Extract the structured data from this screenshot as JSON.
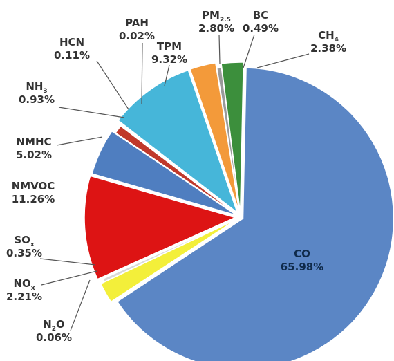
{
  "chart_data": {
    "type": "pie",
    "title": "",
    "legend": "none",
    "slices": [
      {
        "label": "CO",
        "sub": "",
        "value_text": "65.98%",
        "value": 65.98,
        "color": "#5b86c5"
      },
      {
        "label": "N",
        "sub": "2",
        "suffix": "O",
        "value_text": "0.06%",
        "value": 0.06,
        "color": "#e7e7e7"
      },
      {
        "label": "NO",
        "sub": "x",
        "suffix": "",
        "value_text": "2.21%",
        "value": 2.21,
        "color": "#f3ef3a"
      },
      {
        "label": "SO",
        "sub": "x",
        "suffix": "",
        "value_text": "0.35%",
        "value": 0.35,
        "color": "#d8d8d8"
      },
      {
        "label": "NMVOC",
        "sub": "",
        "value_text": "11.26%",
        "value": 11.26,
        "color": "#dd1414"
      },
      {
        "label": "NMHC",
        "sub": "",
        "value_text": "5.02%",
        "value": 5.02,
        "color": "#4f7ec0"
      },
      {
        "label": "NH",
        "sub": "3",
        "suffix": "",
        "value_text": "0.93%",
        "value": 0.93,
        "color": "#c0392b"
      },
      {
        "label": "HCN",
        "sub": "",
        "value_text": "0.11%",
        "value": 0.11,
        "color": "#8e8e8e"
      },
      {
        "label": "PAH",
        "sub": "",
        "value_text": "0.02%",
        "value": 0.02,
        "color": "#6a6a6a"
      },
      {
        "label": "TPM",
        "sub": "",
        "value_text": "9.32%",
        "value": 9.32,
        "color": "#46b6d9"
      },
      {
        "label": "PM",
        "sub": "2.5",
        "suffix": "",
        "value_text": "2.80%",
        "value": 2.8,
        "color": "#f39a3a"
      },
      {
        "label": "BC",
        "sub": "",
        "value_text": "0.49%",
        "value": 0.49,
        "color": "#9a9a9a"
      },
      {
        "label": "CH",
        "sub": "4",
        "suffix": "",
        "value_text": "2.38%",
        "value": 2.38,
        "color": "#3c8f3c"
      }
    ]
  }
}
